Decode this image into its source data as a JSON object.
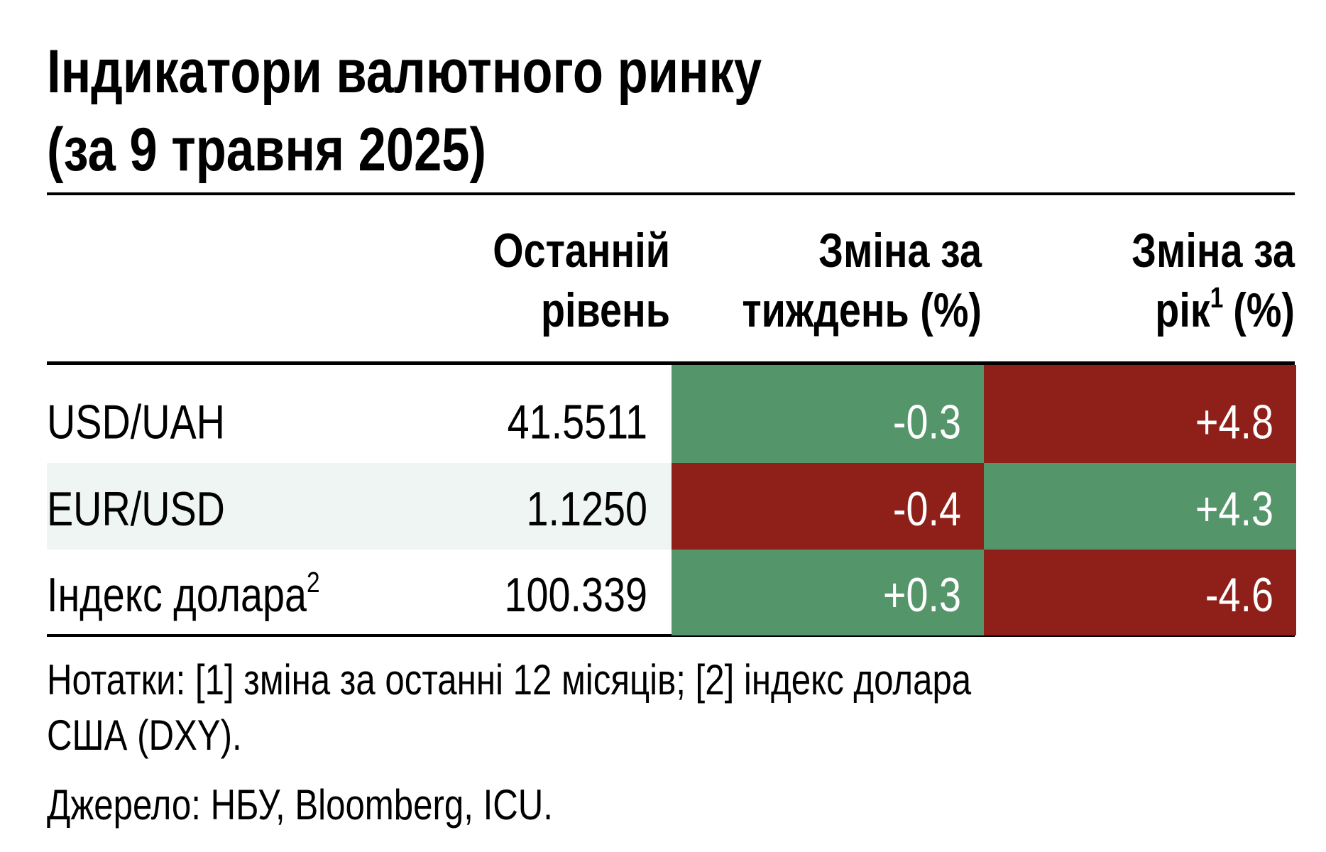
{
  "title": [
    "Індикатори валютного ринку",
    "(за 9 травня 2025)"
  ],
  "header": [
    {
      "lines": [
        {
          "text": "Останній"
        },
        {
          "text": "рівень"
        }
      ]
    },
    {
      "lines": [
        {
          "text": "Зміна за"
        },
        {
          "text": "тиждень (%)"
        }
      ]
    },
    {
      "lines": [
        {
          "text": "Зміна за"
        },
        {
          "text": "рік",
          "sup": "1",
          "rest": "(%)"
        }
      ]
    }
  ],
  "colors": {
    "up": "#55956a",
    "down": "#8f2019",
    "stripe": "#eef5f3"
  },
  "rows": [
    {
      "label": {
        "text": "USD/UAH"
      },
      "level": "41.5511",
      "week": {
        "text": "-0.3",
        "color": "up"
      },
      "year": {
        "text": "+4.8",
        "color": "down"
      }
    },
    {
      "label": {
        "text": "EUR/USD"
      },
      "level": "1.1250",
      "week": {
        "text": "-0.4",
        "color": "down"
      },
      "year": {
        "text": "+4.3",
        "color": "up"
      },
      "stripe": true
    },
    {
      "label": {
        "text": "Індекс долара",
        "sup": "2"
      },
      "level": "100.339",
      "week": {
        "text": "+0.3",
        "color": "up"
      },
      "year": {
        "text": "-4.6",
        "color": "down"
      }
    }
  ],
  "notes": [
    "Нотатки: [1] зміна за останні 12 місяців; [2] індекс долара",
    "США (DXY)."
  ],
  "source": "Джерело: НБУ, Bloomberg, ICU."
}
